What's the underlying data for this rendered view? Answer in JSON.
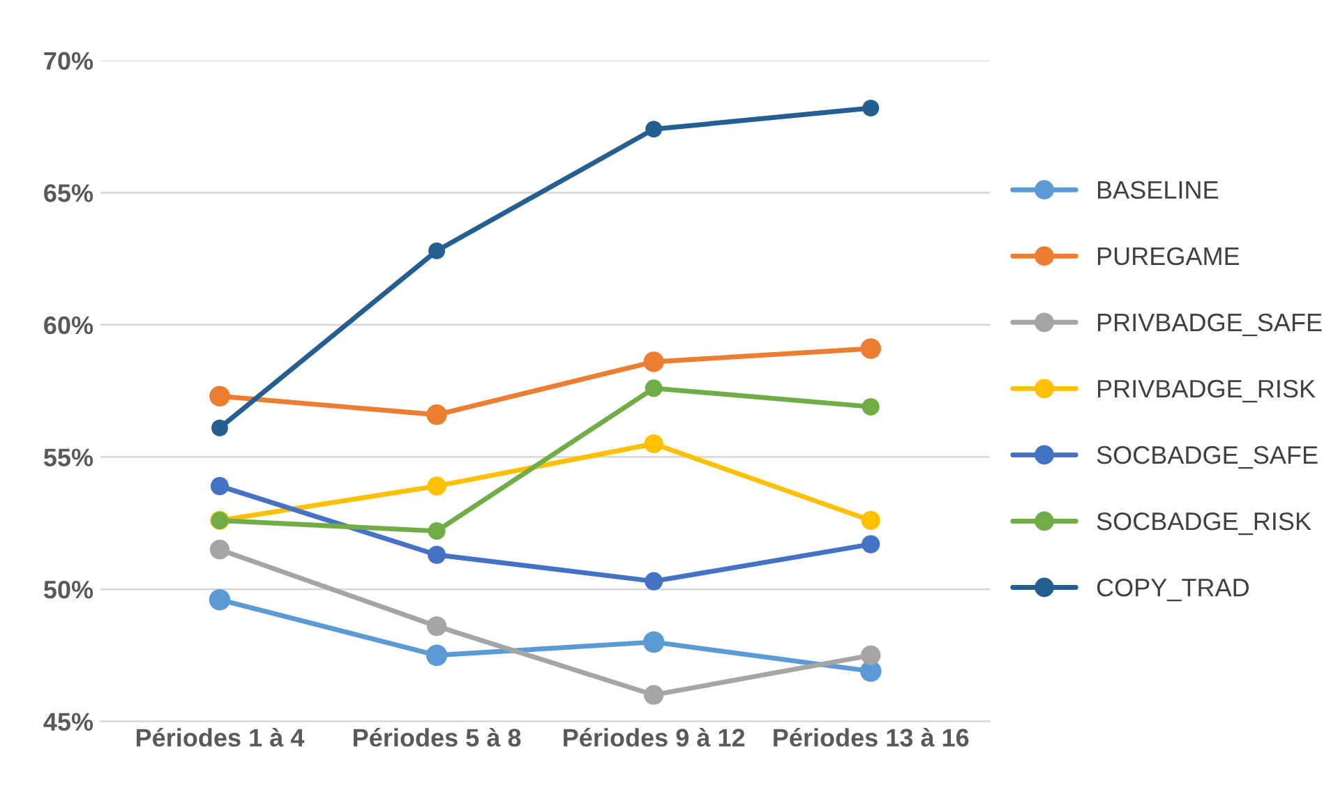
{
  "chart_data": {
    "type": "line",
    "categories": [
      "Périodes 1 à 4",
      "Périodes 5 à 8",
      "Périodes 9 à 12",
      "Périodes 13 à 16"
    ],
    "series": [
      {
        "name": "BASELINE",
        "color": "#5b9bd5",
        "values": [
          49.6,
          47.5,
          48.0,
          46.9
        ]
      },
      {
        "name": "PUREGAME",
        "color": "#ed7d31",
        "values": [
          57.3,
          56.6,
          58.6,
          59.1
        ]
      },
      {
        "name": "PRIVBADGE_SAFE",
        "color": "#a5a5a5",
        "values": [
          51.5,
          48.6,
          46.0,
          47.5
        ]
      },
      {
        "name": "PRIVBADGE_RISK",
        "color": "#ffc000",
        "values": [
          52.6,
          53.9,
          55.5,
          52.6
        ]
      },
      {
        "name": "SOCBADGE_SAFE",
        "color": "#4472c4",
        "values": [
          53.9,
          51.3,
          50.3,
          51.7
        ]
      },
      {
        "name": "SOCBADGE_RISK",
        "color": "#70ad47",
        "values": [
          52.6,
          52.2,
          57.6,
          56.9
        ]
      },
      {
        "name": "COPY_TRAD",
        "color": "#255e91",
        "values": [
          56.1,
          62.8,
          67.4,
          68.2
        ]
      }
    ],
    "ylim": [
      45,
      70
    ],
    "yticks": [
      {
        "value": 45,
        "label": "45%"
      },
      {
        "value": 50,
        "label": "50%"
      },
      {
        "value": 55,
        "label": "55%"
      },
      {
        "value": 60,
        "label": "60%"
      },
      {
        "value": 65,
        "label": "65%"
      },
      {
        "value": 70,
        "label": "70%"
      }
    ],
    "grid": "y",
    "legend": "right",
    "marker": "circle",
    "line_style": "solid"
  }
}
